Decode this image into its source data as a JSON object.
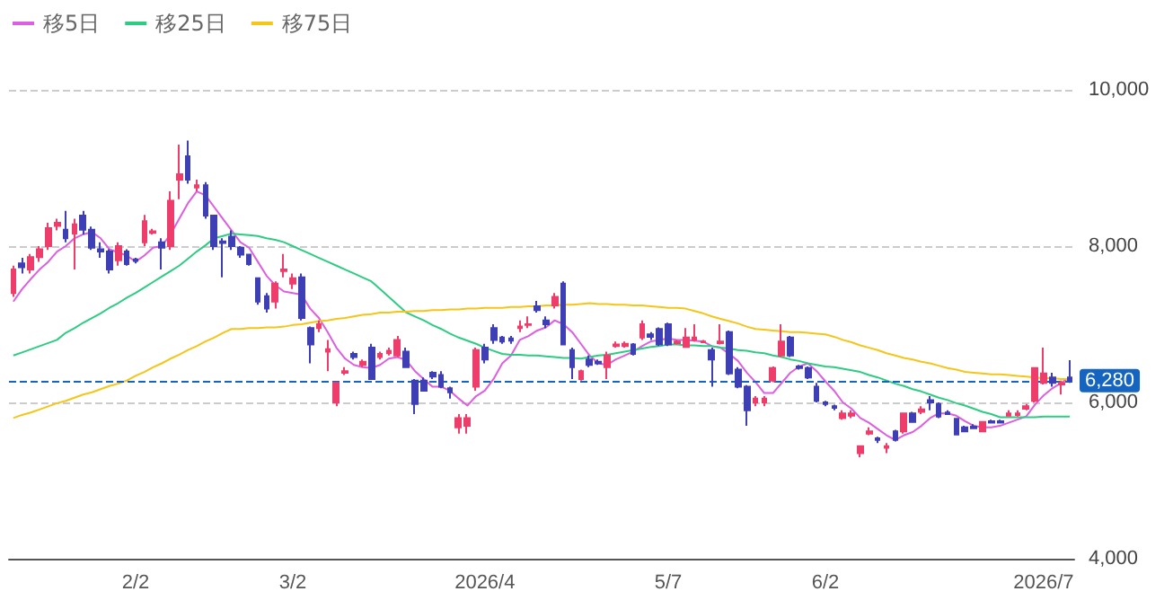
{
  "chart_data": {
    "type": "candlestick",
    "categories": [
      null,
      null,
      null,
      null,
      null,
      null,
      null,
      null,
      null,
      null,
      null,
      null,
      null,
      null,
      "2/2",
      null,
      null,
      null,
      null,
      null,
      null,
      null,
      null,
      null,
      null,
      null,
      null,
      null,
      null,
      null,
      null,
      null,
      "3/2",
      null,
      null,
      null,
      null,
      null,
      null,
      null,
      null,
      null,
      null,
      null,
      null,
      null,
      null,
      null,
      null,
      null,
      null,
      null,
      null,
      null,
      "2026/4",
      null,
      null,
      null,
      null,
      null,
      null,
      null,
      null,
      null,
      null,
      null,
      null,
      null,
      null,
      null,
      null,
      null,
      null,
      null,
      null,
      "5/7",
      null,
      null,
      null,
      null,
      null,
      null,
      null,
      null,
      null,
      null,
      null,
      null,
      null,
      null,
      null,
      null,
      null,
      "6/2",
      null,
      null,
      null,
      null,
      null,
      null,
      null,
      null,
      null,
      null,
      null,
      null,
      null,
      null,
      null,
      null,
      null,
      null,
      null,
      null,
      null,
      null,
      null,
      null,
      "2026/7",
      null,
      null,
      null
    ],
    "ohlc": [
      [
        7400,
        7750,
        7350,
        7700
      ],
      [
        7780,
        7850,
        7650,
        7730
      ],
      [
        7700,
        7900,
        7650,
        7860
      ],
      [
        7860,
        8000,
        7800,
        7960
      ],
      [
        8000,
        8300,
        7950,
        8230
      ],
      [
        8260,
        8350,
        8200,
        8300
      ],
      [
        8210,
        8450,
        8050,
        8100
      ],
      [
        8160,
        8350,
        7700,
        8280
      ],
      [
        8390,
        8450,
        8150,
        8210
      ],
      [
        8210,
        8250,
        7950,
        7980
      ],
      [
        7960,
        8050,
        7850,
        7930
      ],
      [
        7930,
        7960,
        7650,
        7700
      ],
      [
        7820,
        8050,
        7750,
        8000
      ],
      [
        7930,
        7960,
        7750,
        7770
      ],
      [
        7830,
        7850,
        7780,
        7810
      ],
      [
        8050,
        8400,
        8000,
        8320
      ],
      [
        8170,
        8220,
        8150,
        8190
      ],
      [
        8050,
        8100,
        7700,
        7980
      ],
      [
        8000,
        8700,
        7950,
        8580
      ],
      [
        8850,
        9300,
        8600,
        8920
      ],
      [
        9150,
        9350,
        8800,
        8850
      ],
      [
        8750,
        8850,
        8700,
        8780
      ],
      [
        8780,
        8820,
        8350,
        8390
      ],
      [
        8390,
        8400,
        7950,
        8000
      ],
      [
        8060,
        8100,
        7600,
        8040
      ],
      [
        8120,
        8200,
        7950,
        8000
      ],
      [
        7980,
        8000,
        7850,
        7890
      ],
      [
        7890,
        7900,
        7750,
        7770
      ],
      [
        7590,
        7600,
        7250,
        7290
      ],
      [
        7360,
        7400,
        7150,
        7200
      ],
      [
        7290,
        7550,
        7200,
        7520
      ],
      [
        7680,
        7900,
        7600,
        7700
      ],
      [
        7520,
        7650,
        7450,
        7590
      ],
      [
        7600,
        7650,
        7050,
        7080
      ],
      [
        6950,
        6970,
        6500,
        6740
      ],
      [
        6950,
        7050,
        6900,
        7000
      ],
      [
        6650,
        6800,
        6400,
        6680
      ],
      [
        6000,
        6250,
        5950,
        6250
      ],
      [
        6380,
        6450,
        6350,
        6400
      ],
      [
        6620,
        6650,
        6550,
        6580
      ],
      [
        6480,
        6550,
        6450,
        6520
      ],
      [
        6700,
        6750,
        6300,
        6300
      ],
      [
        6580,
        6650,
        6550,
        6620
      ],
      [
        6630,
        6700,
        6600,
        6660
      ],
      [
        6600,
        6850,
        6580,
        6800
      ],
      [
        6650,
        6700,
        6450,
        6450
      ],
      [
        6280,
        6300,
        5850,
        5980
      ],
      [
        6280,
        6320,
        6150,
        6150
      ],
      [
        6380,
        6400,
        6300,
        6330
      ],
      [
        6350,
        6400,
        6180,
        6200
      ],
      [
        6180,
        6200,
        6050,
        6130
      ],
      [
        5680,
        5850,
        5600,
        5800
      ],
      [
        5700,
        5850,
        5600,
        5800
      ],
      [
        6200,
        6700,
        6150,
        6670
      ],
      [
        6700,
        6750,
        6500,
        6550
      ],
      [
        6950,
        7000,
        6750,
        6800
      ],
      [
        6830,
        6850,
        6750,
        6780
      ],
      [
        6820,
        6850,
        6750,
        6790
      ],
      [
        6950,
        7050,
        6900,
        6970
      ],
      [
        6990,
        7100,
        6950,
        7000
      ],
      [
        7230,
        7300,
        7150,
        7180
      ],
      [
        7050,
        7100,
        6950,
        7000
      ],
      [
        7240,
        7400,
        7200,
        7350
      ],
      [
        7520,
        7550,
        6740,
        6740
      ],
      [
        6670,
        6700,
        6300,
        6450
      ],
      [
        6300,
        6420,
        6280,
        6400
      ],
      [
        6550,
        6600,
        6450,
        6480
      ],
      [
        6520,
        6550,
        6480,
        6500
      ],
      [
        6450,
        6650,
        6300,
        6600
      ],
      [
        6720,
        6780,
        6700,
        6740
      ],
      [
        6720,
        6780,
        6700,
        6750
      ],
      [
        6740,
        6760,
        6600,
        6620
      ],
      [
        6830,
        7050,
        6800,
        7000
      ],
      [
        6870,
        6900,
        6800,
        6840
      ],
      [
        6940,
        6960,
        6720,
        6740
      ],
      [
        7000,
        7020,
        6720,
        6740
      ],
      [
        6760,
        6800,
        6740,
        6780
      ],
      [
        6710,
        6950,
        6700,
        6830
      ],
      [
        6800,
        7000,
        6780,
        6830
      ],
      [
        6770,
        6800,
        6760,
        6780
      ],
      [
        6670,
        6700,
        6200,
        6550
      ],
      [
        6760,
        7000,
        6740,
        6780
      ],
      [
        6900,
        6920,
        6350,
        6370
      ],
      [
        6420,
        6450,
        6180,
        6200
      ],
      [
        6200,
        6220,
        5700,
        5900
      ],
      [
        6000,
        6080,
        5950,
        6050
      ],
      [
        6000,
        6080,
        5950,
        6050
      ],
      [
        6280,
        6460,
        6260,
        6440
      ],
      [
        6600,
        7000,
        6580,
        6780
      ],
      [
        6830,
        6850,
        6580,
        6600
      ],
      [
        6460,
        6480,
        6420,
        6440
      ],
      [
        6440,
        6460,
        6300,
        6320
      ],
      [
        6200,
        6250,
        6000,
        6020
      ],
      [
        6000,
        6020,
        5950,
        5980
      ],
      [
        5950,
        5970,
        5900,
        5930
      ],
      [
        5800,
        5900,
        5780,
        5860
      ],
      [
        5830,
        5900,
        5800,
        5860
      ],
      [
        5350,
        5450,
        5300,
        5440
      ],
      [
        5600,
        5680,
        5580,
        5630
      ],
      [
        5540,
        5560,
        5480,
        5520
      ],
      [
        5420,
        5480,
        5350,
        5440
      ],
      [
        5630,
        5650,
        5500,
        5520
      ],
      [
        5630,
        5870,
        5600,
        5860
      ],
      [
        5860,
        5880,
        5740,
        5750
      ],
      [
        5880,
        5950,
        5850,
        5910
      ],
      [
        6030,
        6080,
        5900,
        6000
      ],
      [
        5980,
        6000,
        5800,
        5820
      ],
      [
        5870,
        5900,
        5840,
        5850
      ],
      [
        5790,
        5800,
        5580,
        5590
      ],
      [
        5680,
        5700,
        5620,
        5630
      ],
      [
        5690,
        5720,
        5660,
        5670
      ],
      [
        5630,
        5760,
        5620,
        5750
      ],
      [
        5760,
        5780,
        5730,
        5740
      ],
      [
        5760,
        5780,
        5730,
        5740
      ],
      [
        5830,
        5900,
        5820,
        5860
      ],
      [
        5840,
        5900,
        5820,
        5860
      ],
      [
        5920,
        5980,
        5900,
        5950
      ],
      [
        6020,
        6450,
        6000,
        6440
      ],
      [
        6250,
        6700,
        6230,
        6370
      ],
      [
        6320,
        6380,
        6200,
        6250
      ],
      [
        6230,
        6280,
        6100,
        6250
      ],
      [
        6320,
        6540,
        6250,
        6280
      ]
    ],
    "colors": [
      "#ef3d6b",
      "#3e3eb5",
      "#ef3d6b",
      "#ef3d6b",
      "#ef3d6b",
      "#ef3d6b",
      "#3e3eb5",
      "#ef3d6b",
      "#3e3eb5",
      "#3e3eb5",
      "#3e3eb5",
      "#3e3eb5",
      "#ef3d6b",
      "#3e3eb5",
      "#3e3eb5",
      "#ef3d6b",
      "#ef3d6b",
      "#3e3eb5",
      "#ef3d6b",
      "#ef3d6b",
      "#3e3eb5",
      "#ef3d6b",
      "#3e3eb5",
      "#3e3eb5",
      "#3e3eb5",
      "#3e3eb5",
      "#3e3eb5",
      "#3e3eb5",
      "#3e3eb5",
      "#3e3eb5",
      "#ef3d6b",
      "#ef3d6b",
      "#ef3d6b",
      "#3e3eb5",
      "#3e3eb5",
      "#ef3d6b",
      "#ef3d6b",
      "#ef3d6b",
      "#ef3d6b",
      "#3e3eb5",
      "#ef3d6b",
      "#3e3eb5",
      "#ef3d6b",
      "#ef3d6b",
      "#ef3d6b",
      "#3e3eb5",
      "#3e3eb5",
      "#3e3eb5",
      "#3e3eb5",
      "#3e3eb5",
      "#3e3eb5",
      "#ef3d6b",
      "#ef3d6b",
      "#ef3d6b",
      "#3e3eb5",
      "#3e3eb5",
      "#3e3eb5",
      "#3e3eb5",
      "#ef3d6b",
      "#ef3d6b",
      "#3e3eb5",
      "#3e3eb5",
      "#ef3d6b",
      "#3e3eb5",
      "#3e3eb5",
      "#ef3d6b",
      "#3e3eb5",
      "#3e3eb5",
      "#ef3d6b",
      "#ef3d6b",
      "#ef3d6b",
      "#3e3eb5",
      "#ef3d6b",
      "#3e3eb5",
      "#3e3eb5",
      "#3e3eb5",
      "#ef3d6b",
      "#ef3d6b",
      "#ef3d6b",
      "#ef3d6b",
      "#3e3eb5",
      "#ef3d6b",
      "#3e3eb5",
      "#3e3eb5",
      "#3e3eb5",
      "#ef3d6b",
      "#ef3d6b",
      "#ef3d6b",
      "#ef3d6b",
      "#3e3eb5",
      "#3e3eb5",
      "#3e3eb5",
      "#3e3eb5",
      "#3e3eb5",
      "#3e3eb5",
      "#ef3d6b",
      "#ef3d6b",
      "#ef3d6b",
      "#ef3d6b",
      "#3e3eb5",
      "#ef3d6b",
      "#3e3eb5",
      "#ef3d6b",
      "#3e3eb5",
      "#ef3d6b",
      "#3e3eb5",
      "#3e3eb5",
      "#3e3eb5",
      "#3e3eb5",
      "#3e3eb5",
      "#3e3eb5",
      "#ef3d6b",
      "#3e3eb5",
      "#3e3eb5",
      "#ef3d6b",
      "#ef3d6b",
      "#ef3d6b",
      "#ef3d6b",
      "#ef3d6b",
      "#3e3eb5",
      "#ef3d6b",
      "#3e3eb5"
    ],
    "series": [
      {
        "type": "line",
        "name": "移5日",
        "color": "#dd5ee0",
        "values": [
          7290,
          7450,
          7580,
          7700,
          7800,
          7930,
          8000,
          8100,
          8150,
          8180,
          8100,
          7960,
          7920,
          7880,
          7800,
          7880,
          7980,
          8000,
          8150,
          8350,
          8550,
          8700,
          8650,
          8500,
          8350,
          8200,
          8050,
          7980,
          7800,
          7620,
          7500,
          7420,
          7400,
          7380,
          7200,
          7080,
          6900,
          6700,
          6560,
          6480,
          6450,
          6440,
          6480,
          6560,
          6580,
          6540,
          6400,
          6300,
          6200,
          6200,
          6150,
          6050,
          5960,
          6080,
          6150,
          6300,
          6500,
          6600,
          6800,
          6850,
          6920,
          6960,
          7050,
          7000,
          6900,
          6750,
          6600,
          6500,
          6480,
          6550,
          6600,
          6650,
          6720,
          6780,
          6800,
          6820,
          6800,
          6800,
          6790,
          6780,
          6720,
          6700,
          6620,
          6530,
          6380,
          6260,
          6120,
          6120,
          6250,
          6380,
          6460,
          6500,
          6400,
          6270,
          6150,
          6000,
          5920,
          5800,
          5740,
          5660,
          5580,
          5520,
          5580,
          5620,
          5700,
          5800,
          5860,
          5860,
          5830,
          5760,
          5700,
          5680,
          5680,
          5700,
          5740,
          5780,
          5820,
          5970,
          6090,
          6180,
          6250,
          6320
        ]
      },
      {
        "type": "line",
        "name": "移25日",
        "color": "#2ecc82",
        "values": [
          6600,
          6640,
          6680,
          6720,
          6760,
          6800,
          6890,
          6950,
          7020,
          7080,
          7140,
          7210,
          7270,
          7340,
          7400,
          7470,
          7540,
          7610,
          7680,
          7750,
          7840,
          7930,
          8010,
          8100,
          8130,
          8160,
          8150,
          8140,
          8130,
          8100,
          8080,
          8050,
          8000,
          7950,
          7900,
          7850,
          7800,
          7750,
          7700,
          7650,
          7600,
          7550,
          7450,
          7350,
          7250,
          7150,
          7100,
          7050,
          6990,
          6940,
          6880,
          6830,
          6790,
          6750,
          6700,
          6660,
          6620,
          6610,
          6610,
          6600,
          6600,
          6590,
          6580,
          6570,
          6570,
          6560,
          6580,
          6600,
          6610,
          6630,
          6650,
          6670,
          6690,
          6710,
          6720,
          6740,
          6740,
          6730,
          6730,
          6720,
          6720,
          6700,
          6690,
          6670,
          6660,
          6640,
          6630,
          6600,
          6580,
          6550,
          6530,
          6500,
          6480,
          6460,
          6450,
          6430,
          6410,
          6390,
          6350,
          6320,
          6280,
          6240,
          6210,
          6170,
          6140,
          6100,
          6060,
          6030,
          5990,
          5960,
          5920,
          5880,
          5850,
          5810,
          5810,
          5810,
          5810,
          5810,
          5820,
          5820,
          5820,
          5820
        ]
      },
      {
        "type": "line",
        "name": "移75日",
        "color": "#f5c518",
        "values": [
          5800,
          5840,
          5870,
          5910,
          5950,
          5990,
          6020,
          6060,
          6100,
          6130,
          6170,
          6210,
          6240,
          6280,
          6340,
          6390,
          6450,
          6500,
          6560,
          6610,
          6670,
          6720,
          6780,
          6830,
          6890,
          6940,
          6940,
          6950,
          6950,
          6960,
          6960,
          6970,
          6990,
          7000,
          7020,
          7040,
          7050,
          7070,
          7080,
          7100,
          7120,
          7130,
          7150,
          7150,
          7160,
          7160,
          7170,
          7170,
          7180,
          7180,
          7190,
          7190,
          7200,
          7200,
          7210,
          7210,
          7210,
          7220,
          7220,
          7230,
          7230,
          7240,
          7240,
          7250,
          7250,
          7260,
          7270,
          7260,
          7260,
          7250,
          7250,
          7240,
          7240,
          7230,
          7220,
          7210,
          7210,
          7200,
          7170,
          7140,
          7100,
          7070,
          7040,
          7010,
          6970,
          6940,
          6930,
          6920,
          6910,
          6900,
          6900,
          6890,
          6880,
          6870,
          6840,
          6800,
          6770,
          6730,
          6700,
          6670,
          6630,
          6600,
          6570,
          6550,
          6520,
          6500,
          6470,
          6440,
          6420,
          6390,
          6380,
          6370,
          6360,
          6360,
          6350,
          6340,
          6330,
          6320,
          6310,
          6310,
          6300,
          6300
        ]
      }
    ],
    "ylim": [
      4000,
      10000
    ],
    "yticks": [
      {
        "value": 4000,
        "label": "4,000"
      },
      {
        "value": 6000,
        "label": "6,000"
      },
      {
        "value": 8000,
        "label": "8,000"
      },
      {
        "value": 10000,
        "label": "10,000"
      }
    ],
    "grid": "y",
    "legend": "top left",
    "marker": "none",
    "line_style": "solid",
    "ref_lines": [
      {
        "axis": "y",
        "value": 6280,
        "label": "6,280",
        "color": "#1565c0",
        "line_style": "dashed"
      }
    ]
  }
}
